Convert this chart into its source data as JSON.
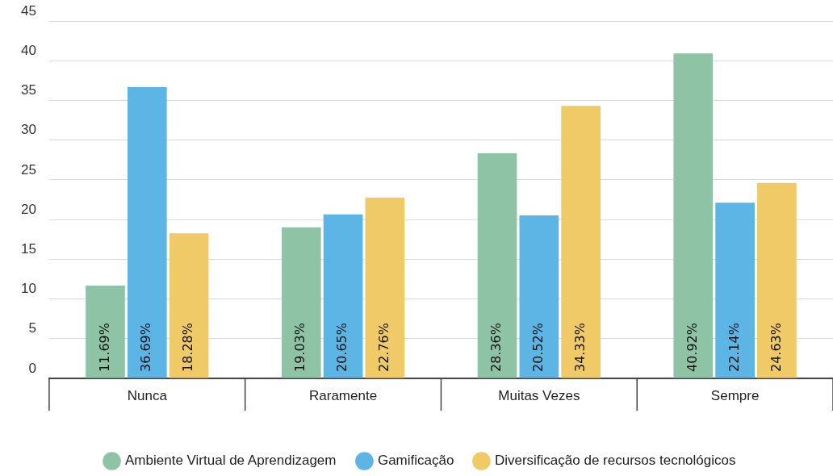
{
  "chart_data": {
    "type": "bar",
    "categories": [
      "Nunca",
      "Raramente",
      "Muitas Vezes",
      "Sempre"
    ],
    "series": [
      {
        "name": "Ambiente Virtual de Aprendizagem",
        "color": "#8ec4a5",
        "values": [
          11.69,
          19.03,
          28.36,
          40.92
        ],
        "value_labels": [
          "11.69%",
          "19.03%",
          "28.36%",
          "40.92%"
        ]
      },
      {
        "name": "Gamificação",
        "color": "#5db5e5",
        "values": [
          36.69,
          20.65,
          20.52,
          22.14
        ],
        "value_labels": [
          "36.69%",
          "20.65%",
          "20.52%",
          "22.14%"
        ]
      },
      {
        "name": "Diversificação de recursos tecnológicos",
        "color": "#efca66",
        "values": [
          18.28,
          22.76,
          34.33,
          24.63
        ],
        "value_labels": [
          "18.28%",
          "22.76%",
          "34.33%",
          "24.63%"
        ]
      }
    ],
    "ylim": [
      0,
      45
    ],
    "yticks": [
      0,
      5,
      10,
      15,
      20,
      25,
      30,
      35,
      40,
      45
    ],
    "grid": "y",
    "legend": "bottom"
  }
}
